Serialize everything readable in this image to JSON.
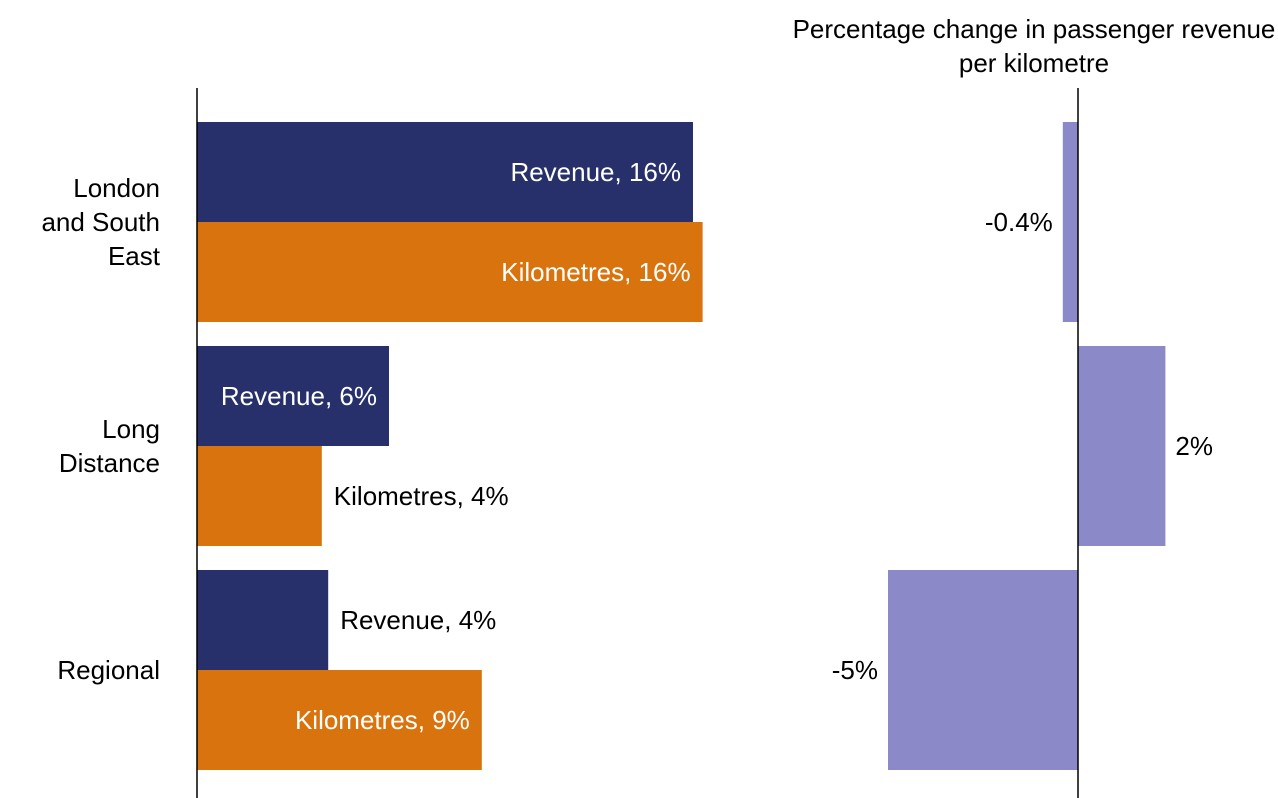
{
  "chart_data": [
    {
      "type": "bar",
      "orientation": "horizontal",
      "categories": [
        "London and South East",
        "Long Distance",
        "Regional"
      ],
      "series": [
        {
          "name": "Revenue",
          "color": "#27306b",
          "values": [
            15.5,
            6.0,
            4.1
          ],
          "value_labels": [
            "Revenue, 16%",
            "Revenue, 6%",
            "Revenue, 4%"
          ]
        },
        {
          "name": "Kilometres",
          "color": "#d9730d",
          "values": [
            15.8,
            3.9,
            8.9
          ],
          "value_labels": [
            "Kilometres, 16%",
            "Kilometres, 4%",
            "Kilometres, 9%"
          ]
        }
      ],
      "xlim": [
        0,
        20
      ]
    },
    {
      "type": "bar",
      "orientation": "horizontal",
      "title": "Percentage change in passenger revenue per kilometre",
      "values": [
        -0.4,
        2.3,
        -5.0
      ],
      "value_labels": [
        "-0.4%",
        "2%",
        "-5%"
      ],
      "color": "#8b89c8",
      "xlim": [
        -8,
        5
      ]
    }
  ]
}
